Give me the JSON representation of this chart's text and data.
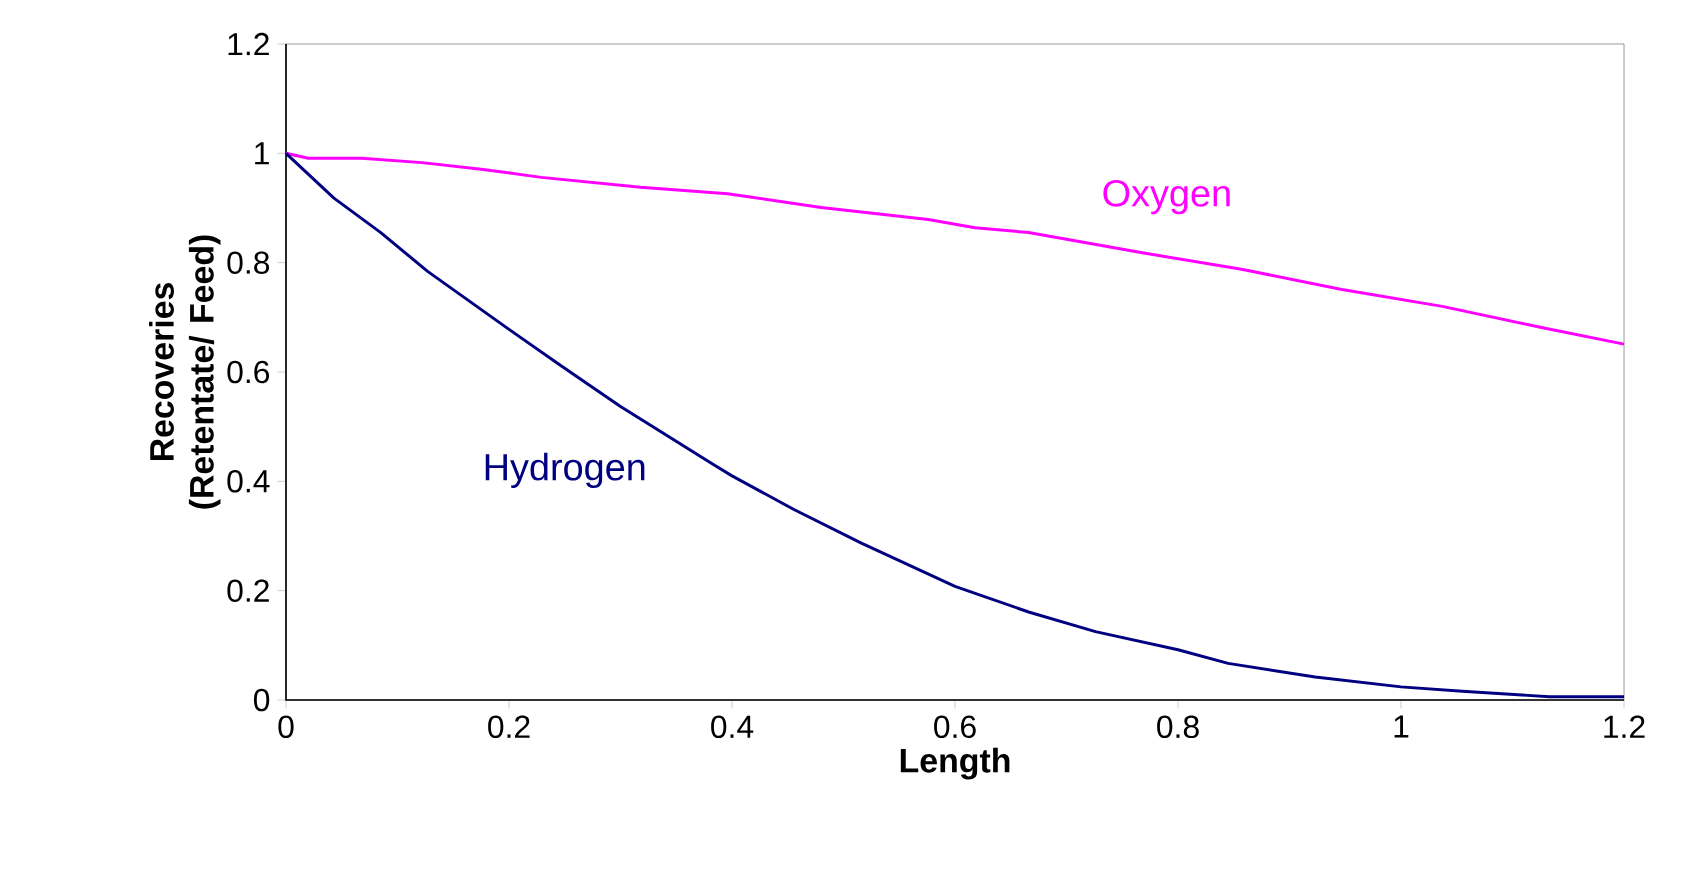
{
  "chart_data": {
    "type": "line",
    "xlabel": "Length",
    "ylabel": "Recoveries (Retentate/ Feed)",
    "xlim": [
      0,
      1.2
    ],
    "ylim": [
      0,
      1.2
    ],
    "xticks": [
      0,
      0.2,
      0.4,
      0.6,
      0.8,
      1,
      1.2
    ],
    "yticks": [
      0,
      0.2,
      0.4,
      0.6,
      0.8,
      1,
      1.2
    ],
    "grid": false,
    "legend": false,
    "marker": "none",
    "line_style": "solid",
    "series": [
      {
        "name": "Oxygen",
        "color": "#ff00ff",
        "x": [
          0,
          0.02,
          0.068,
          0.122,
          0.175,
          0.229,
          0.318,
          0.396,
          0.48,
          0.576,
          0.618,
          0.666,
          0.768,
          0.857,
          0.947,
          1.037,
          1.127,
          1.2
        ],
        "values": [
          1,
          0.991,
          0.991,
          0.983,
          0.971,
          0.956,
          0.938,
          0.926,
          0.901,
          0.879,
          0.864,
          0.855,
          0.818,
          0.788,
          0.751,
          0.72,
          0.681,
          0.651
        ]
      },
      {
        "name": "Hydrogen",
        "color": "#000080",
        "x": [
          0,
          0.043,
          0.085,
          0.127,
          0.2,
          0.247,
          0.3,
          0.384,
          0.4,
          0.456,
          0.516,
          0.6,
          0.666,
          0.726,
          0.8,
          0.845,
          0.923,
          1.0,
          1.055,
          1.133,
          1.2
        ],
        "values": [
          1,
          0.918,
          0.855,
          0.784,
          0.678,
          0.611,
          0.537,
          0.43,
          0.41,
          0.348,
          0.287,
          0.208,
          0.161,
          0.125,
          0.092,
          0.067,
          0.042,
          0.024,
          0.016,
          0.006,
          0.006
        ]
      }
    ]
  }
}
